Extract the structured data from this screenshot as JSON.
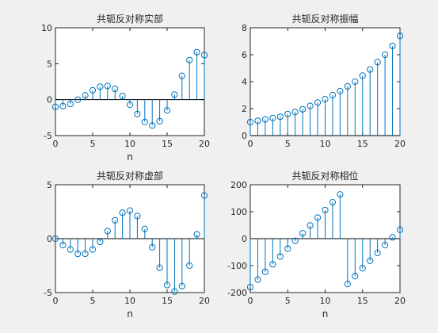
{
  "chart_data": [
    {
      "type": "stem",
      "title": "共轭反对称实部",
      "xlabel": "n",
      "xlim": [
        0,
        20
      ],
      "ylim": [
        -5,
        10
      ],
      "xticks": [
        0,
        5,
        10,
        15,
        20
      ],
      "yticks": [
        -5,
        0,
        5,
        10
      ],
      "x": [
        0,
        1,
        2,
        3,
        4,
        5,
        6,
        7,
        8,
        9,
        10,
        11,
        12,
        13,
        14,
        15,
        16,
        17,
        18,
        19,
        20
      ],
      "values": [
        -1,
        -0.9,
        -0.6,
        0,
        0.6,
        1.3,
        1.8,
        1.9,
        1.5,
        0.5,
        -0.7,
        -2.0,
        -3.1,
        -3.6,
        -3.0,
        -1.5,
        0.7,
        3.3,
        5.5,
        6.6,
        6.2
      ]
    },
    {
      "type": "stem",
      "title": "共轭反对称振幅",
      "xlabel": "",
      "xlim": [
        0,
        20
      ],
      "ylim": [
        0,
        8
      ],
      "xticks": [
        0,
        5,
        10,
        15,
        20
      ],
      "yticks": [
        0,
        2,
        4,
        6,
        8
      ],
      "x": [
        0,
        1,
        2,
        3,
        4,
        5,
        6,
        7,
        8,
        9,
        10,
        11,
        12,
        13,
        14,
        15,
        16,
        17,
        18,
        19,
        20
      ],
      "values": [
        1.0,
        1.1,
        1.2,
        1.3,
        1.4,
        1.6,
        1.75,
        1.95,
        2.2,
        2.45,
        2.7,
        3.0,
        3.3,
        3.65,
        4.0,
        4.45,
        4.9,
        5.45,
        6.0,
        6.65,
        7.4
      ]
    },
    {
      "type": "stem",
      "title": "共轭反对称虚部",
      "xlabel": "n",
      "xlim": [
        0,
        20
      ],
      "ylim": [
        -5,
        5
      ],
      "xticks": [
        0,
        5,
        10,
        15,
        20
      ],
      "yticks": [
        -5,
        0,
        5
      ],
      "x": [
        0,
        1,
        2,
        3,
        4,
        5,
        6,
        7,
        8,
        9,
        10,
        11,
        12,
        13,
        14,
        15,
        16,
        17,
        18,
        19,
        20
      ],
      "values": [
        0,
        -0.6,
        -1.0,
        -1.4,
        -1.4,
        -1.0,
        -0.3,
        0.7,
        1.7,
        2.4,
        2.6,
        2.1,
        0.9,
        -0.8,
        -2.7,
        -4.3,
        -4.9,
        -4.4,
        -2.5,
        0.4,
        4.0
      ]
    },
    {
      "type": "stem",
      "title": "共轭反对称相位",
      "xlabel": "n",
      "xlim": [
        0,
        20
      ],
      "ylim": [
        -200,
        200
      ],
      "xticks": [
        0,
        5,
        10,
        15,
        20
      ],
      "yticks": [
        -200,
        -100,
        0,
        100,
        200
      ],
      "x": [
        0,
        1,
        2,
        3,
        4,
        5,
        6,
        7,
        8,
        9,
        10,
        11,
        12,
        13,
        14,
        15,
        16,
        17,
        18,
        19,
        20
      ],
      "values": [
        -180,
        -152,
        -123,
        -95,
        -66,
        -37,
        -8,
        20,
        49,
        78,
        106,
        135,
        164,
        -168,
        -139,
        -110,
        -82,
        -53,
        -24,
        5,
        33
      ]
    }
  ]
}
